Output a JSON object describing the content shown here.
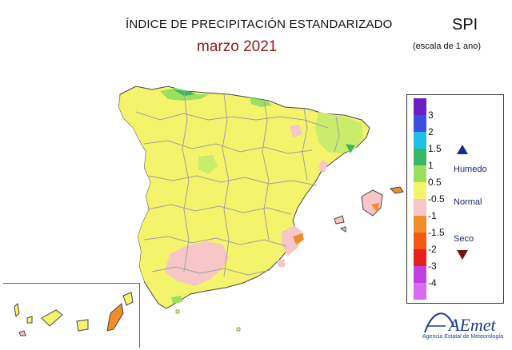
{
  "header": {
    "title": "ÍNDICE DE PRECIPITACIÓN ESTANDARIZADO",
    "subtitle": "marzo 2021",
    "index_name": "SPI",
    "scale_note": "(escala de 1 ano)"
  },
  "legend": {
    "classes": [
      {
        "label": "3",
        "color": "#6a1fc2"
      },
      {
        "label": "2",
        "color": "#3a4fe0"
      },
      {
        "label": "1.5",
        "color": "#1fbfe6"
      },
      {
        "label": "1",
        "color": "#37b866"
      },
      {
        "label": "0.5",
        "color": "#9be05c"
      },
      {
        "label": "-0.5",
        "color": "#f4f46c"
      },
      {
        "label": "-1",
        "color": "#f7c6c6"
      },
      {
        "label": "-1.5",
        "color": "#f08c2a"
      },
      {
        "label": "-2",
        "color": "#f25a14"
      },
      {
        "label": "-3",
        "color": "#e62020"
      },
      {
        "label": "-4",
        "color": "#c040e0"
      },
      {
        "label": "",
        "color": "#d96af2"
      }
    ],
    "categories": {
      "wet": "Humedo",
      "normal": "Normal",
      "dry": "Seco"
    },
    "wet_color": "#1a2a8c",
    "dry_color": "#7a1010"
  },
  "map": {
    "base_color": "#f4f46c",
    "border_color": "#a0a0a0",
    "outline_color": "#444444",
    "humid_light": "#c9ec6a",
    "humid": "#9be05c",
    "very_humid": "#37b866",
    "dry": "#f7c6c6",
    "very_dry": "#f08c2a"
  },
  "logo": {
    "text": "AEmet",
    "caption": "Agencia Estatal de Meteorología"
  }
}
